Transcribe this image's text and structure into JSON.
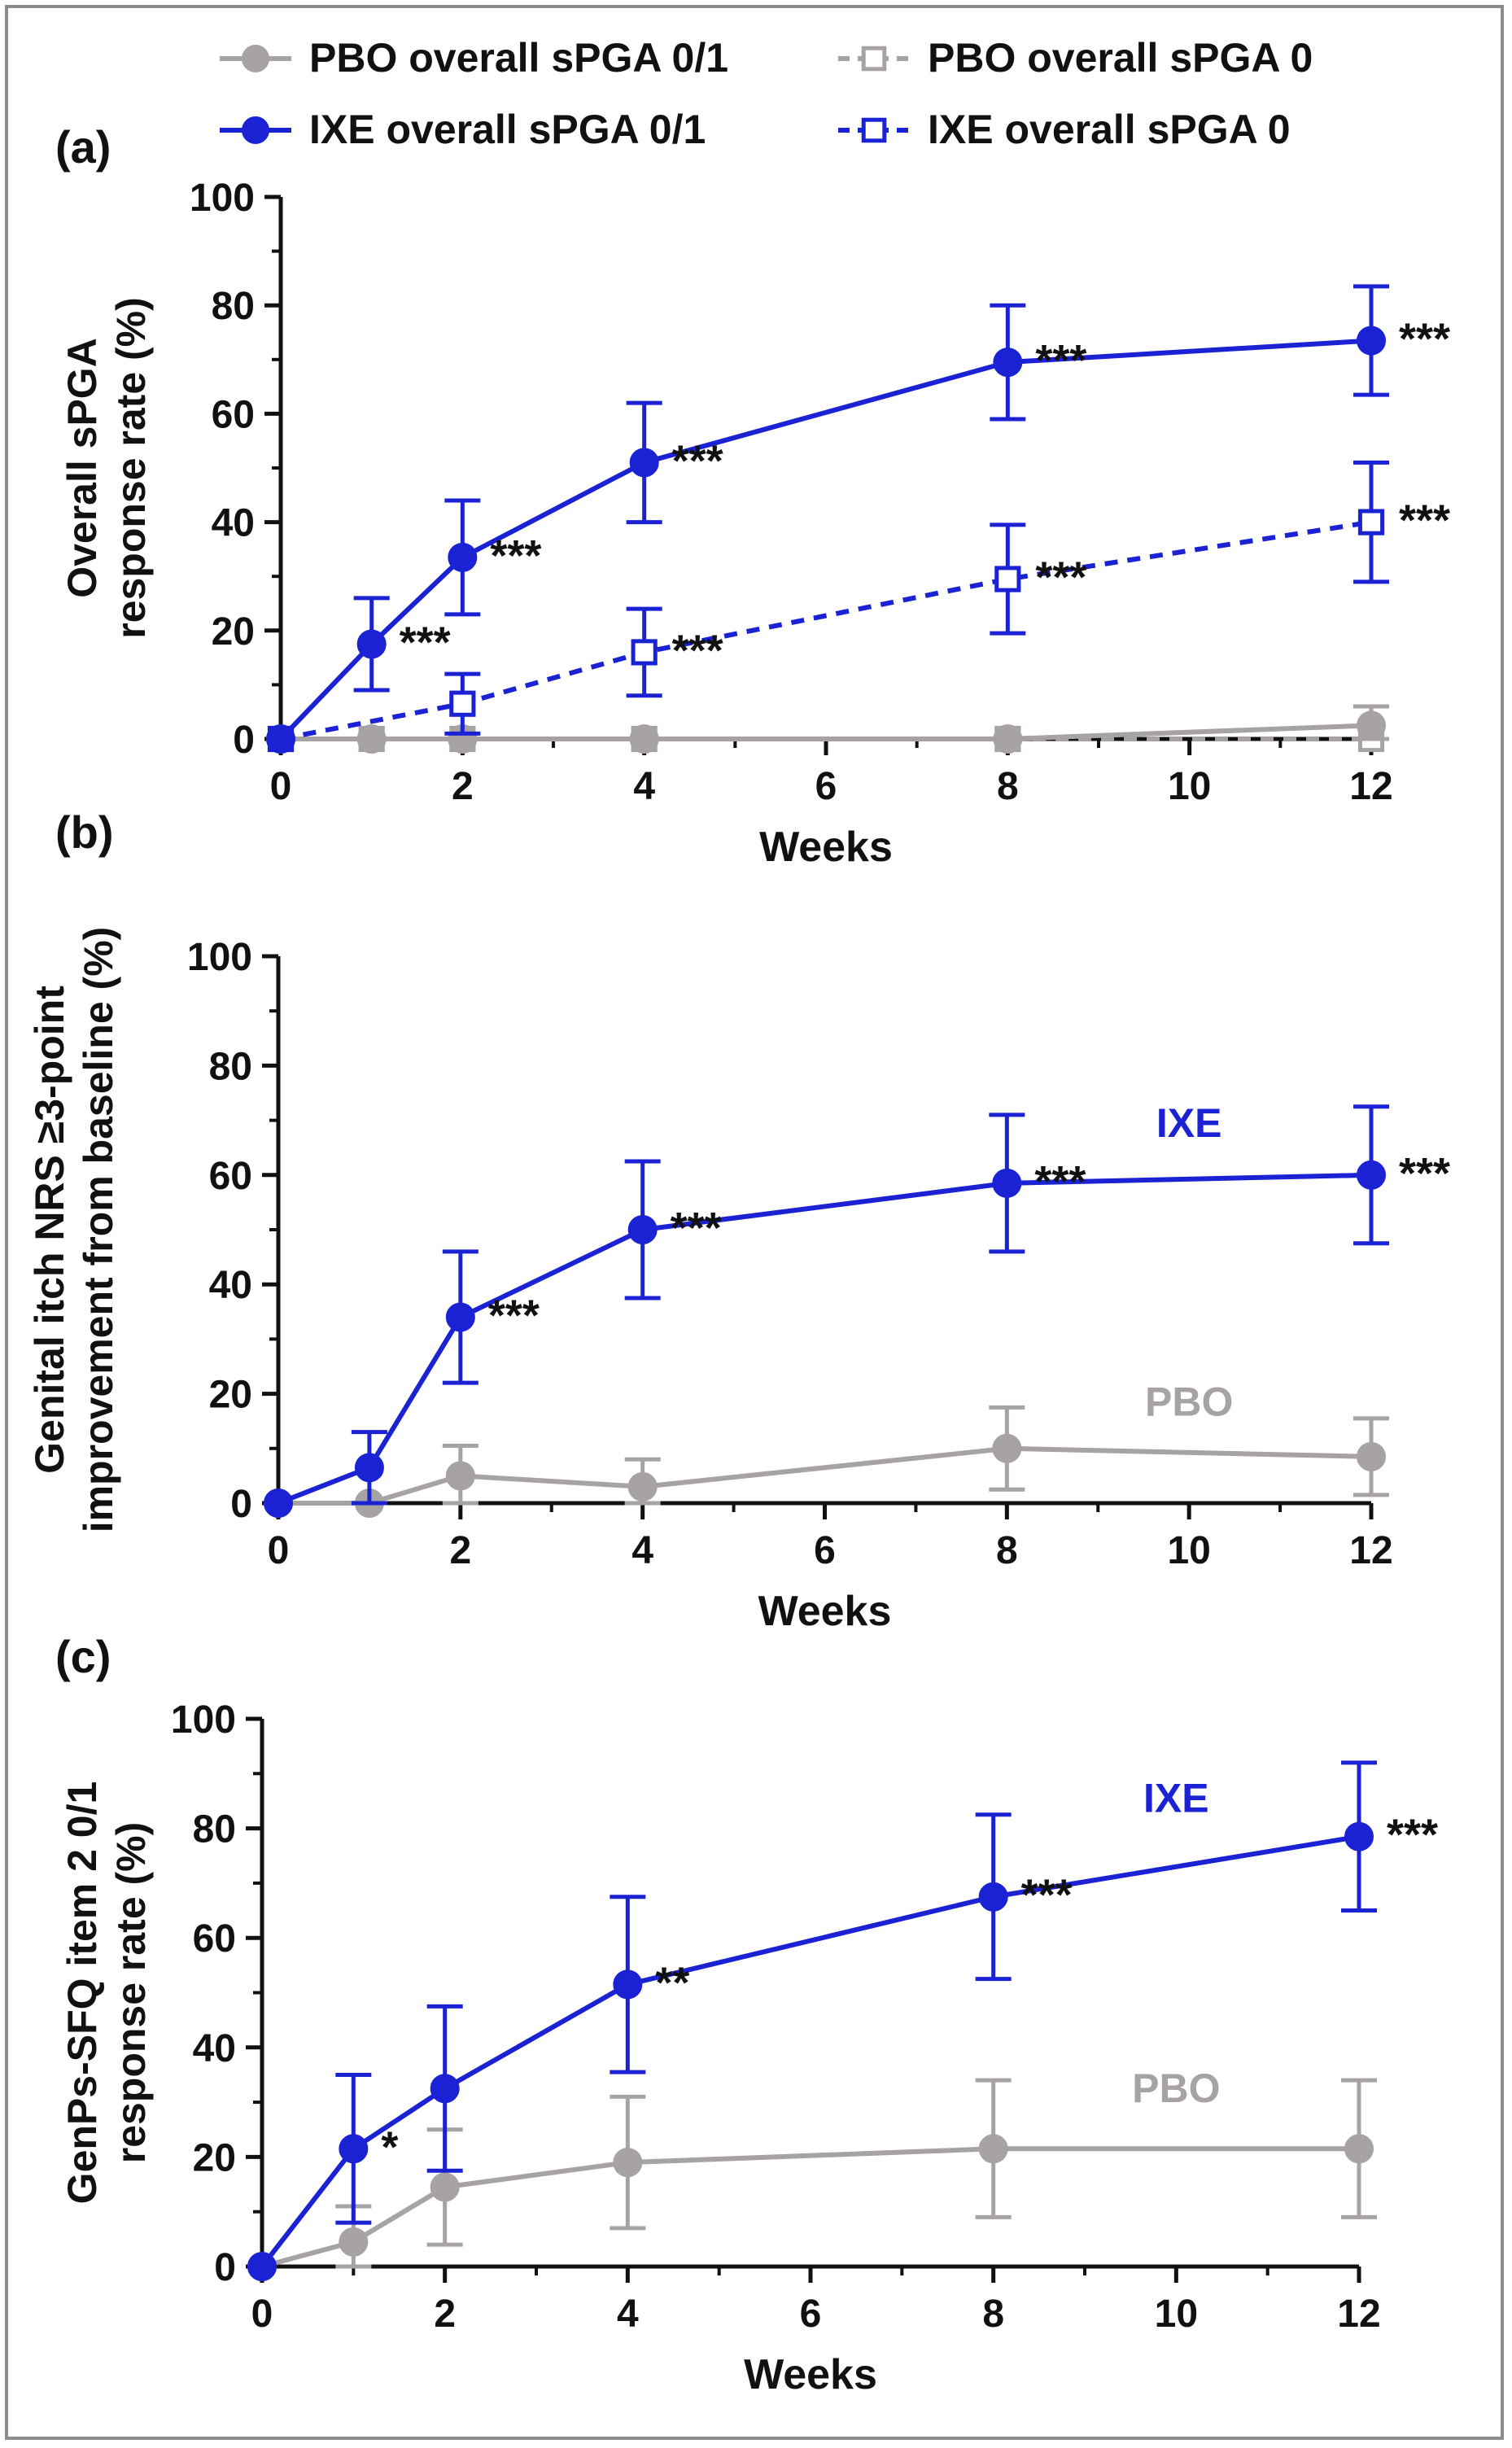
{
  "legend": {
    "items": [
      {
        "label": "PBO overall sPGA 0/1",
        "color": "#a7a2a3",
        "marker": "circle",
        "dashed": false
      },
      {
        "label": "PBO overall sPGA 0",
        "color": "#a7a2a3",
        "marker": "square-open",
        "dashed": true
      },
      {
        "label": "IXE overall sPGA 0/1",
        "color": "#1a22d4",
        "marker": "circle",
        "dashed": false
      },
      {
        "label": "IXE overall sPGA 0",
        "color": "#1a22d4",
        "marker": "square-open",
        "dashed": true
      }
    ]
  },
  "colors": {
    "ixe": "#1a22d4",
    "pbo": "#a7a2a3",
    "axis": "#111111"
  },
  "chart_data": [
    {
      "type": "line",
      "panel_label": "(a)",
      "xlabel": "Weeks",
      "ylabel": [
        "Overall sPGA",
        "response rate (%)"
      ],
      "xlim": [
        0,
        12
      ],
      "ylim": [
        0,
        100
      ],
      "x_ticks": [
        0,
        2,
        4,
        6,
        8,
        10,
        12
      ],
      "y_ticks": [
        0,
        20,
        40,
        60,
        80,
        100
      ],
      "grid": false,
      "series": [
        {
          "name": "PBO overall sPGA 0",
          "color": "#a7a2a3",
          "marker": "square-open",
          "dashed": true,
          "x": [
            0,
            1,
            2,
            4,
            8,
            12
          ],
          "y": [
            0,
            0,
            0,
            0,
            0,
            0
          ],
          "err": [
            0,
            0,
            0,
            0,
            0,
            0
          ],
          "stars": [
            "",
            "",
            "",
            "",
            "",
            ""
          ]
        },
        {
          "name": "PBO overall sPGA 0/1",
          "color": "#a7a2a3",
          "marker": "circle",
          "dashed": false,
          "x": [
            0,
            1,
            2,
            4,
            8,
            12
          ],
          "y": [
            0,
            0,
            0,
            0,
            0,
            2.5
          ],
          "err": [
            0,
            0,
            0,
            0,
            0,
            3.5
          ],
          "stars": [
            "",
            "",
            "",
            "",
            "",
            ""
          ]
        },
        {
          "name": "IXE overall sPGA 0",
          "color": "#1a22d4",
          "marker": "square-open",
          "dashed": true,
          "x": [
            0,
            2,
            4,
            8,
            12
          ],
          "y": [
            0,
            6.5,
            16,
            29.5,
            40
          ],
          "err": [
            0,
            5.5,
            8,
            10,
            11
          ],
          "stars": [
            "",
            "",
            "***",
            "***",
            "***"
          ]
        },
        {
          "name": "IXE overall sPGA 0/1",
          "color": "#1a22d4",
          "marker": "circle",
          "dashed": false,
          "x": [
            0,
            1,
            2,
            4,
            8,
            12
          ],
          "y": [
            0,
            17.5,
            33.5,
            51,
            69.5,
            73.5
          ],
          "err": [
            0,
            8.5,
            10.5,
            11,
            10.5,
            10
          ],
          "stars": [
            "",
            "***",
            "***",
            "***",
            "***",
            "***"
          ]
        }
      ],
      "inline_labels": []
    },
    {
      "type": "line",
      "panel_label": "(b)",
      "xlabel": "Weeks",
      "ylabel": [
        "Genital itch NRS ≥3-point",
        "improvement from baseline (%)"
      ],
      "xlim": [
        0,
        12
      ],
      "ylim": [
        0,
        100
      ],
      "x_ticks": [
        0,
        2,
        4,
        6,
        8,
        10,
        12
      ],
      "y_ticks": [
        0,
        20,
        40,
        60,
        80,
        100
      ],
      "grid": false,
      "series": [
        {
          "name": "PBO",
          "color": "#a7a2a3",
          "marker": "circle",
          "dashed": false,
          "x": [
            0,
            1,
            2,
            4,
            8,
            12
          ],
          "y": [
            0,
            0,
            5,
            3,
            10,
            8.5
          ],
          "err": [
            0,
            0,
            5.5,
            5,
            7.5,
            7
          ],
          "stars": [
            "",
            "",
            "",
            "",
            "",
            ""
          ]
        },
        {
          "name": "IXE",
          "color": "#1a22d4",
          "marker": "circle",
          "dashed": false,
          "x": [
            0,
            1,
            2,
            4,
            8,
            12
          ],
          "y": [
            0,
            6.5,
            34,
            50,
            58.5,
            60
          ],
          "err": [
            0,
            6.5,
            12,
            12.5,
            12.5,
            12.5
          ],
          "stars": [
            "",
            "",
            "***",
            "***",
            "***",
            "***"
          ]
        }
      ],
      "inline_labels": [
        {
          "text": "IXE",
          "color": "#1a22d4",
          "x": 10,
          "y": 67
        },
        {
          "text": "PBO",
          "color": "#a7a2a3",
          "x": 10,
          "y": 16
        }
      ]
    },
    {
      "type": "line",
      "panel_label": "(c)",
      "xlabel": "Weeks",
      "ylabel": [
        "GenPs-SFQ item 2 0/1",
        "response rate (%)"
      ],
      "xlim": [
        0,
        12
      ],
      "ylim": [
        0,
        100
      ],
      "x_ticks": [
        0,
        2,
        4,
        6,
        8,
        10,
        12
      ],
      "y_ticks": [
        0,
        20,
        40,
        60,
        80,
        100
      ],
      "grid": false,
      "series": [
        {
          "name": "PBO",
          "color": "#a7a2a3",
          "marker": "circle",
          "dashed": false,
          "x": [
            0,
            1,
            2,
            4,
            8,
            12
          ],
          "y": [
            0,
            4.5,
            14.5,
            19,
            21.5,
            21.5
          ],
          "err": [
            0,
            6.5,
            10.5,
            12,
            12.5,
            12.5
          ],
          "stars": [
            "",
            "",
            "",
            "",
            "",
            ""
          ]
        },
        {
          "name": "IXE",
          "color": "#1a22d4",
          "marker": "circle",
          "dashed": false,
          "x": [
            0,
            1,
            2,
            4,
            8,
            12
          ],
          "y": [
            0,
            21.5,
            32.5,
            51.5,
            67.5,
            78.5
          ],
          "err": [
            0,
            13.5,
            15,
            16,
            15,
            13.5
          ],
          "stars": [
            "",
            "*",
            "",
            "**",
            "***",
            "***"
          ]
        }
      ],
      "inline_labels": [
        {
          "text": "IXE",
          "color": "#1a22d4",
          "x": 10,
          "y": 83
        },
        {
          "text": "PBO",
          "color": "#a7a2a3",
          "x": 10,
          "y": 30
        }
      ]
    }
  ]
}
